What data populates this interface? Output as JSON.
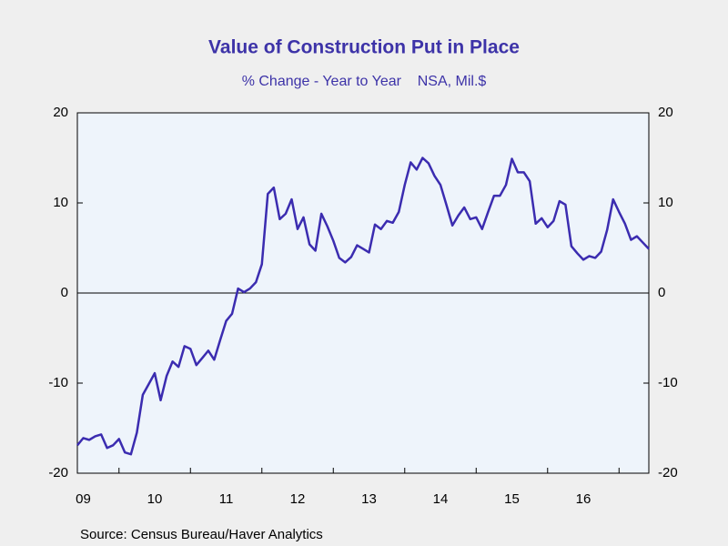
{
  "chart_data": {
    "type": "line",
    "title": "Value of Construction Put in Place",
    "subtitle": "% Change - Year to Year    NSA, Mil.$",
    "source": "Source:  Census Bureau/Haver Analytics",
    "x": [
      2009.417,
      2009.5,
      2009.583,
      2009.667,
      2009.75,
      2009.833,
      2009.917,
      2010.0,
      2010.083,
      2010.167,
      2010.25,
      2010.333,
      2010.417,
      2010.5,
      2010.583,
      2010.667,
      2010.75,
      2010.833,
      2010.917,
      2011.0,
      2011.083,
      2011.167,
      2011.25,
      2011.333,
      2011.417,
      2011.5,
      2011.583,
      2011.667,
      2011.75,
      2011.833,
      2011.917,
      2012.0,
      2012.083,
      2012.167,
      2012.25,
      2012.333,
      2012.417,
      2012.5,
      2012.583,
      2012.667,
      2012.75,
      2012.833,
      2012.917,
      2013.0,
      2013.083,
      2013.167,
      2013.25,
      2013.333,
      2013.417,
      2013.5,
      2013.583,
      2013.667,
      2013.75,
      2013.833,
      2013.917,
      2014.0,
      2014.083,
      2014.167,
      2014.25,
      2014.333,
      2014.417,
      2014.5,
      2014.583,
      2014.667,
      2014.75,
      2014.833,
      2014.917,
      2015.0,
      2015.083,
      2015.167,
      2015.25,
      2015.333,
      2015.417,
      2015.5,
      2015.583,
      2015.667,
      2015.75,
      2015.833,
      2015.917,
      2016.0,
      2016.083,
      2016.167,
      2016.25,
      2016.333,
      2016.417,
      2016.5,
      2016.583,
      2016.667,
      2016.75,
      2016.833,
      2016.917,
      2017.0,
      2017.083,
      2017.167,
      2017.25,
      2017.333,
      2017.417
    ],
    "series": [
      {
        "name": "Value of Construction Put in Place",
        "color": "#3b2cb0",
        "values": [
          -16.9,
          -16.1,
          -16.3,
          -15.9,
          -15.7,
          -17.2,
          -16.9,
          -16.2,
          -17.7,
          -17.9,
          -15.5,
          -11.3,
          -10.1,
          -8.9,
          -11.9,
          -9.2,
          -7.6,
          -8.2,
          -5.9,
          -6.2,
          -8.0,
          -7.2,
          -6.4,
          -7.4,
          -5.2,
          -3.1,
          -2.3,
          0.5,
          0.1,
          0.5,
          1.2,
          3.2,
          11.0,
          11.7,
          8.2,
          8.8,
          10.4,
          7.1,
          8.4,
          5.4,
          4.7,
          8.8,
          7.4,
          5.8,
          3.9,
          3.4,
          4.0,
          5.3,
          4.9,
          4.5,
          7.6,
          7.1,
          8.0,
          7.8,
          9.0,
          12.0,
          14.5,
          13.7,
          15.0,
          14.4,
          13.0,
          12.0,
          9.8,
          7.5,
          8.6,
          9.5,
          8.2,
          8.4,
          7.1,
          9.0,
          10.8,
          10.8,
          12.0,
          14.9,
          13.4,
          13.4,
          12.4,
          7.7,
          8.3,
          7.3,
          8.0,
          10.2,
          9.8,
          5.2,
          4.4,
          3.7,
          4.1,
          3.9,
          4.6,
          7.0,
          10.4,
          9.0,
          7.7,
          5.9,
          6.3,
          5.6,
          4.9
        ]
      }
    ],
    "xlim": [
      2009.417,
      2017.417
    ],
    "xticks": [
      {
        "value": 2009.5,
        "label": "09"
      },
      {
        "value": 2010.5,
        "label": "10"
      },
      {
        "value": 2011.5,
        "label": "11"
      },
      {
        "value": 2012.5,
        "label": "12"
      },
      {
        "value": 2013.5,
        "label": "13"
      },
      {
        "value": 2014.5,
        "label": "14"
      },
      {
        "value": 2015.5,
        "label": "15"
      },
      {
        "value": 2016.5,
        "label": "16"
      }
    ],
    "ylim": [
      -20,
      20
    ],
    "yticks": [
      -20,
      -10,
      0,
      10,
      20
    ],
    "y2lim": [
      -20,
      20
    ],
    "y2ticks": [
      -20,
      -10,
      0,
      10,
      20
    ],
    "zero_line": true
  }
}
